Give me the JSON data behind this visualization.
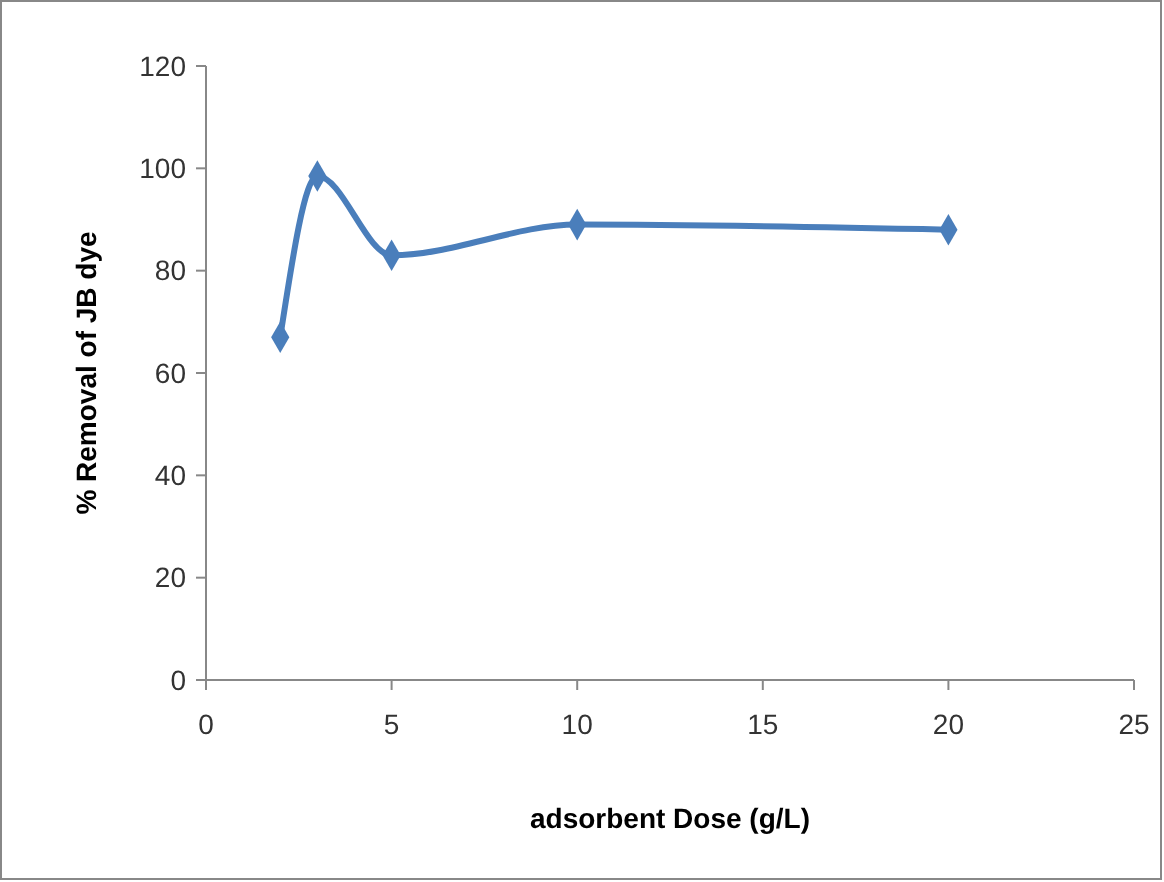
{
  "chart_data": {
    "type": "line",
    "xlabel": "adsorbent Dose (g/L)",
    "ylabel": "% Removal of JB dye",
    "x": [
      2,
      3,
      5,
      10,
      20
    ],
    "series": [
      {
        "color": "#4a7ebb",
        "values": [
          67,
          98.5,
          83,
          89,
          88
        ]
      }
    ],
    "xlim": [
      0,
      25
    ],
    "xticks": [
      0,
      5,
      10,
      15,
      20,
      25
    ],
    "ylim": [
      0,
      120
    ],
    "yticks": [
      0,
      20,
      40,
      60,
      80,
      100,
      120
    ],
    "grid": false,
    "marker": "diamond",
    "line_style": "solid"
  }
}
